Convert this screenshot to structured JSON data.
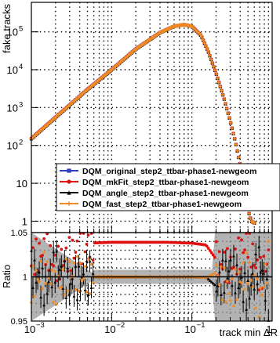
{
  "chart_data": [
    {
      "panel": "main",
      "type": "scatter",
      "xlabel": "track min ΔR",
      "ylabel": "fake tracks",
      "x_scale": "log",
      "y_scale": "log",
      "xlim": [
        0.001,
        1.0
      ],
      "ylim": [
        0.5,
        600000
      ],
      "grid": true,
      "x_ticks": [
        {
          "value": 0.001,
          "base": "10",
          "exp": "−3"
        },
        {
          "value": 0.01,
          "base": "10",
          "exp": "−2"
        },
        {
          "value": 0.1,
          "base": "10",
          "exp": "−1"
        },
        {
          "value": 1,
          "base": "1",
          "exp": ""
        }
      ],
      "y_ticks": [
        {
          "value": 1,
          "base": "1",
          "exp": ""
        },
        {
          "value": 10,
          "base": "10",
          "exp": ""
        },
        {
          "value": 100,
          "base": "10",
          "exp": "2"
        },
        {
          "value": 1000,
          "base": "10",
          "exp": "3"
        },
        {
          "value": 10000,
          "base": "10",
          "exp": "4"
        },
        {
          "value": 100000,
          "base": "10",
          "exp": "5"
        }
      ],
      "legend_position": "center-right",
      "series": [
        {
          "name": "DQM_original_step2_ttbar-phase1-newgeom",
          "color": "#2b3cc2",
          "marker": "square",
          "x": [
            0.001,
            0.002,
            0.005,
            0.01,
            0.02,
            0.04,
            0.06,
            0.08,
            0.1,
            0.13,
            0.16,
            0.2,
            0.25,
            0.3,
            0.35,
            0.4,
            0.45,
            0.5,
            0.55,
            0.6
          ],
          "y": [
            150,
            550,
            3000,
            10000,
            35000,
            95000,
            140000,
            155000,
            140000,
            80000,
            30000,
            8000,
            1800,
            450,
            120,
            30,
            8,
            2,
            1,
            0.9
          ]
        },
        {
          "name": "DQM_mkFit_step2_ttbar-phase1-newgeom",
          "color": "#e01010",
          "marker": "circle",
          "x": [
            0.001,
            0.002,
            0.005,
            0.01,
            0.02,
            0.04,
            0.06,
            0.08,
            0.1,
            0.13,
            0.16,
            0.2,
            0.25,
            0.3,
            0.35,
            0.4,
            0.45,
            0.5,
            0.55,
            0.6
          ],
          "y": [
            155,
            560,
            3050,
            10200,
            35500,
            96000,
            141000,
            156000,
            141000,
            81000,
            30500,
            8100,
            1820,
            455,
            121,
            30,
            8,
            2,
            1,
            0.9
          ]
        },
        {
          "name": "DQM_angle_step2_ttbar-phase1-newgeom",
          "color": "#000000",
          "marker": "triangle",
          "x": [
            0.001,
            0.002,
            0.005,
            0.01,
            0.02,
            0.04,
            0.06,
            0.08,
            0.1,
            0.13,
            0.16,
            0.2,
            0.25,
            0.3,
            0.35,
            0.4,
            0.45,
            0.5,
            0.55,
            0.6
          ],
          "y": [
            150,
            550,
            3000,
            10000,
            35000,
            95000,
            140000,
            155000,
            140000,
            80000,
            30000,
            8000,
            1800,
            450,
            120,
            30,
            8,
            2,
            1,
            0.9
          ]
        },
        {
          "name": "DQM_fast_step2_ttbar-phase1-newgeom",
          "color": "#f08a24",
          "marker": "cross",
          "x": [
            0.001,
            0.002,
            0.005,
            0.01,
            0.02,
            0.04,
            0.06,
            0.08,
            0.1,
            0.13,
            0.16,
            0.2,
            0.25,
            0.3,
            0.35,
            0.4,
            0.45,
            0.5,
            0.55,
            0.6
          ],
          "y": [
            150,
            550,
            3000,
            10000,
            35000,
            95000,
            140000,
            155000,
            140000,
            80000,
            30000,
            8000,
            1800,
            450,
            120,
            30,
            8,
            2,
            1,
            0.9
          ]
        }
      ]
    },
    {
      "panel": "ratio",
      "type": "scatter",
      "xlabel": "track min ΔR",
      "ylabel": "Ratio",
      "x_scale": "log",
      "xlim": [
        0.001,
        1.0
      ],
      "ylim": [
        0.95,
        1.05
      ],
      "grid": true,
      "y_ticks": [
        {
          "value": 0.95,
          "label": "0.95"
        },
        {
          "value": 1.0,
          "label": "1"
        },
        {
          "value": 1.05,
          "label": "1.05"
        }
      ],
      "series": [
        {
          "name": "DQM_mkFit_step2_ttbar-phase1-newgeom",
          "color": "#e01010",
          "marker": "circle",
          "x": [
            0.001,
            0.0015,
            0.002,
            0.003,
            0.005,
            0.01,
            0.02,
            0.05,
            0.1,
            0.15,
            0.2,
            0.3,
            0.5,
            0.7,
            0.9
          ],
          "y": [
            1.018,
            1.032,
            1.012,
            1.025,
            1.038,
            1.039,
            1.039,
            1.039,
            1.038,
            1.036,
            1.02,
            1.01,
            1.04,
            1.0,
            1.02
          ]
        },
        {
          "name": "DQM_angle_step2_ttbar-phase1-newgeom",
          "color": "#000000",
          "marker": "triangle",
          "x": [
            0.001,
            0.0015,
            0.002,
            0.003,
            0.005,
            0.01,
            0.02,
            0.05,
            0.1,
            0.15,
            0.2,
            0.3,
            0.5,
            0.7,
            0.9
          ],
          "y": [
            1.01,
            0.985,
            1.015,
            0.99,
            1.0,
            1.0,
            1.0,
            1.0,
            1.0,
            1.0,
            0.99,
            1.01,
            0.98,
            1.02,
            0.97
          ]
        },
        {
          "name": "DQM_fast_step2_ttbar-phase1-newgeom",
          "color": "#f08a24",
          "marker": "cross",
          "x": [
            0.001,
            0.0015,
            0.002,
            0.003,
            0.005,
            0.01,
            0.02,
            0.05,
            0.1,
            0.15,
            0.2,
            0.3,
            0.5,
            0.7,
            0.9
          ],
          "y": [
            0.99,
            1.01,
            0.985,
            1.005,
            1.0,
            1.0,
            1.0,
            1.0,
            1.0,
            0.999,
            1.005,
            0.98,
            1.01,
            0.97,
            1.02
          ]
        }
      ]
    }
  ]
}
